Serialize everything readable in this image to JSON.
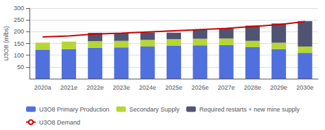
{
  "chart_data": {
    "type": "bar",
    "stacked": true,
    "ylabel": "U3O8 (mlbs)",
    "categories": [
      "2020a",
      "2021e",
      "2022e",
      "2023e",
      "2024e",
      "2025e",
      "2026e",
      "2027e",
      "2028e",
      "2029e",
      "2030e"
    ],
    "series": [
      {
        "name": "U3O8 Primary Production",
        "type": "bar",
        "values": [
          124,
          126,
          132,
          133,
          137,
          140,
          142,
          143,
          134,
          126,
          110
        ]
      },
      {
        "name": "Secondary Supply",
        "type": "bar",
        "values": [
          30,
          32,
          28,
          28,
          28,
          28,
          28,
          28,
          27,
          27,
          27
        ]
      },
      {
        "name": "Required restarts + new mine supply",
        "type": "bar",
        "values": [
          0,
          0,
          35,
          32,
          32,
          28,
          38,
          42,
          65,
          82,
          108
        ]
      },
      {
        "name": "U3O8 Demand",
        "type": "line",
        "color": "#cc0000",
        "values": [
          178,
          182,
          190,
          194,
          199,
          204,
          209,
          214,
          222,
          230,
          243
        ]
      }
    ],
    "ylim": [
      0,
      300
    ],
    "yticks": [
      50,
      100,
      150,
      200,
      250,
      300
    ],
    "grid": true,
    "legend": "bottom"
  }
}
